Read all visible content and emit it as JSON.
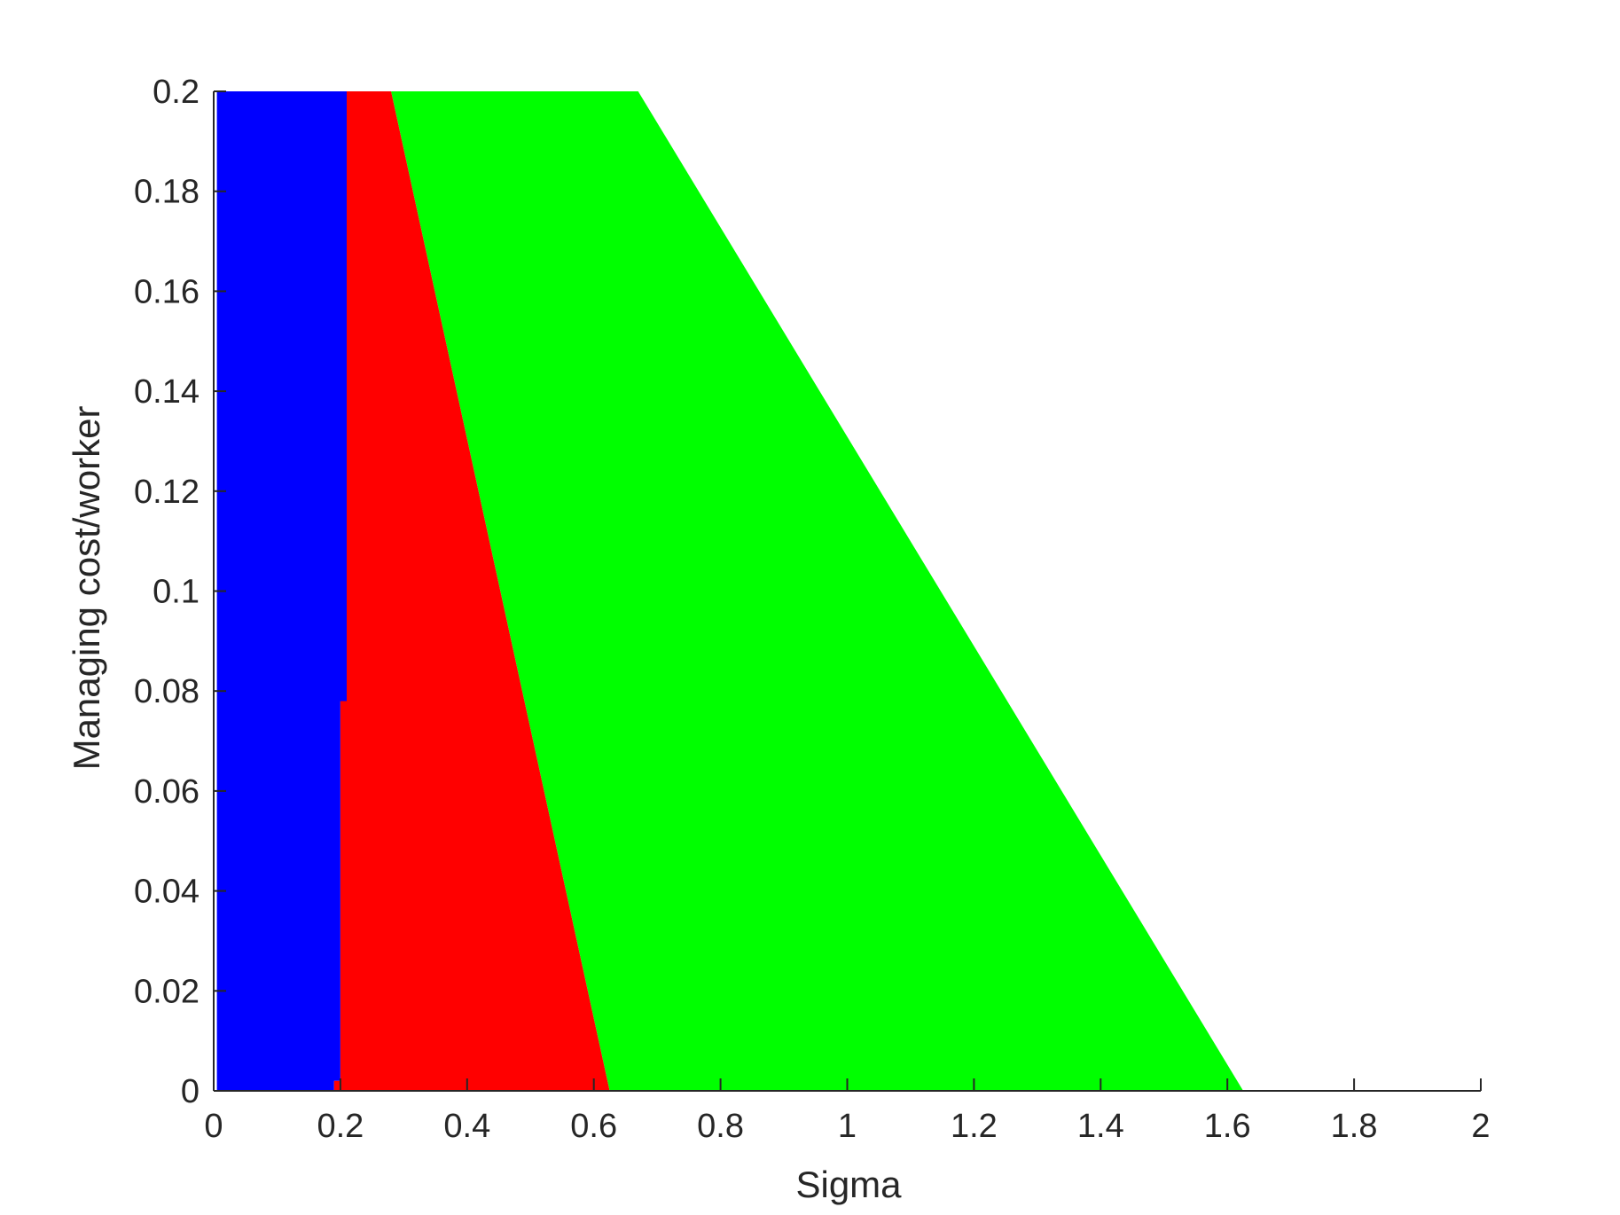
{
  "chart_data": {
    "type": "area",
    "title": "",
    "xlabel": "Sigma",
    "ylabel": "Managing cost/worker",
    "xlim": [
      0,
      2
    ],
    "ylim": [
      0,
      0.2
    ],
    "xticks": [
      0,
      0.2,
      0.4,
      0.6,
      0.8,
      1,
      1.2,
      1.4,
      1.6,
      1.8,
      2
    ],
    "xtick_labels": [
      "0",
      "0.2",
      "0.4",
      "0.6",
      "0.8",
      "1",
      "1.2",
      "1.4",
      "1.6",
      "1.8",
      "2"
    ],
    "yticks": [
      0,
      0.02,
      0.04,
      0.06,
      0.08,
      0.1,
      0.12,
      0.14,
      0.16,
      0.18,
      0.2
    ],
    "ytick_labels": [
      "0",
      "0.02",
      "0.04",
      "0.06",
      "0.08",
      "0.1",
      "0.12",
      "0.14",
      "0.16",
      "0.18",
      "0.2"
    ],
    "grid": false,
    "series": [
      {
        "color": "#0000ff",
        "polygon": [
          [
            0.005,
            0
          ],
          [
            0.19,
            0
          ],
          [
            0.19,
            0.002
          ],
          [
            0.2,
            0.002
          ],
          [
            0.2,
            0.078
          ],
          [
            0.21,
            0.078
          ],
          [
            0.21,
            0.2
          ],
          [
            0.005,
            0.2
          ]
        ]
      },
      {
        "color": "#ff0000",
        "polygon": [
          [
            0.19,
            0
          ],
          [
            0.625,
            0
          ],
          [
            0.28,
            0.2
          ],
          [
            0.21,
            0.2
          ],
          [
            0.21,
            0.078
          ],
          [
            0.2,
            0.078
          ],
          [
            0.2,
            0.002
          ],
          [
            0.19,
            0.002
          ]
        ]
      },
      {
        "color": "#00ff00",
        "polygon": [
          [
            0.625,
            0
          ],
          [
            1.625,
            0
          ],
          [
            0.67,
            0.2
          ],
          [
            0.28,
            0.2
          ]
        ]
      }
    ]
  }
}
